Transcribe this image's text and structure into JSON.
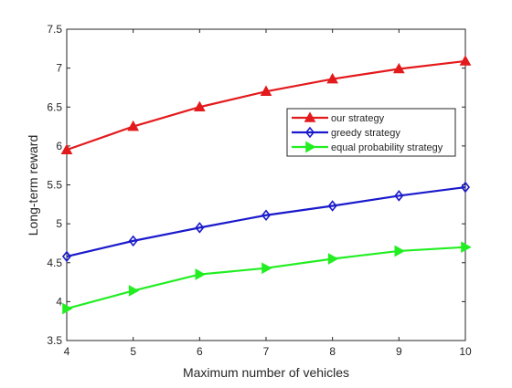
{
  "chart_data": {
    "type": "line",
    "xlabel": "Maximum number of vehicles",
    "ylabel": "Long-term reward",
    "xlim": [
      4,
      10
    ],
    "ylim": [
      3.5,
      7.5
    ],
    "grid": false,
    "legend_position": "right-center",
    "x": [
      4,
      5,
      6,
      7,
      8,
      9,
      10
    ],
    "x_ticks": [
      "4",
      "5",
      "6",
      "7",
      "8",
      "9",
      "10"
    ],
    "y_ticks": [
      "3.5",
      "4",
      "4.5",
      "5",
      "5.5",
      "6",
      "6.5",
      "7",
      "7.5"
    ],
    "series": [
      {
        "name": "our strategy",
        "color": "#e31a1c",
        "marker": "triangle-up",
        "values": [
          5.95,
          6.25,
          6.5,
          6.7,
          6.86,
          6.99,
          7.09
        ]
      },
      {
        "name": "greedy strategy",
        "color": "#1a1acc",
        "marker": "diamond",
        "values": [
          4.58,
          4.78,
          4.95,
          5.11,
          5.23,
          5.36,
          5.47
        ]
      },
      {
        "name": "equal probability strategy",
        "color": "#22ee22",
        "marker": "triangle-right",
        "values": [
          3.91,
          4.14,
          4.35,
          4.43,
          4.55,
          4.65,
          4.7
        ]
      }
    ]
  }
}
